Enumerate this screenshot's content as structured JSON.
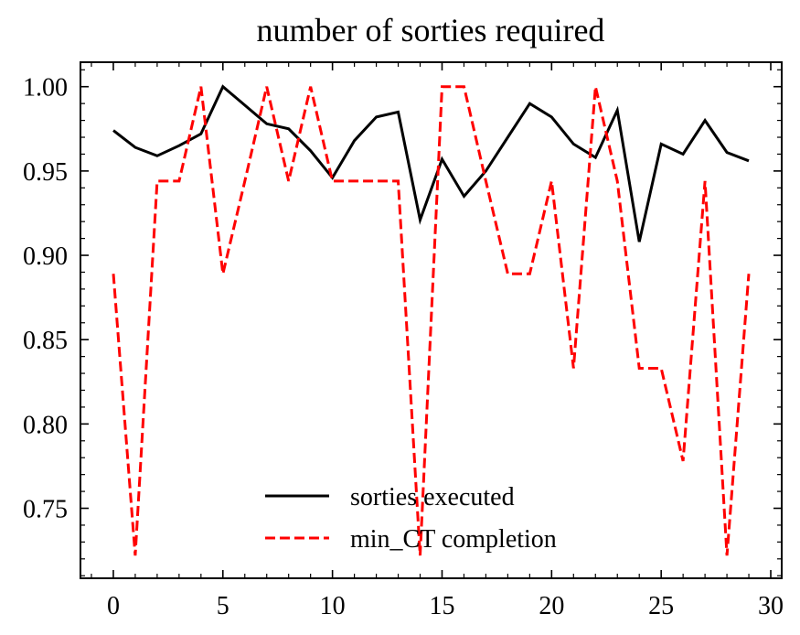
{
  "chart_data": {
    "type": "line",
    "title": "number of sorties required",
    "xlabel": "",
    "ylabel": "",
    "xlim": [
      -1.5,
      30.5
    ],
    "ylim": [
      0.7085,
      1.0145
    ],
    "xticks": [
      0,
      5,
      10,
      15,
      20,
      25,
      30
    ],
    "xtick_labels": [
      "0",
      "5",
      "10",
      "15",
      "20",
      "25",
      "30"
    ],
    "yticks": [
      0.75,
      0.8,
      0.85,
      0.9,
      0.95,
      1.0
    ],
    "ytick_labels": [
      "0.75",
      "0.80",
      "0.85",
      "0.90",
      "0.95",
      "1.00"
    ],
    "grid": false,
    "legend_position": "bottom-center",
    "x": [
      0,
      1,
      2,
      3,
      4,
      5,
      6,
      7,
      8,
      9,
      10,
      11,
      12,
      13,
      14,
      15,
      16,
      17,
      18,
      19,
      20,
      21,
      22,
      23,
      24,
      25,
      26,
      27,
      28,
      29
    ],
    "series": [
      {
        "name": "sorties executed",
        "color": "#000000",
        "dash": "solid",
        "values": [
          0.974,
          0.964,
          0.959,
          0.965,
          0.972,
          1.0,
          0.989,
          0.978,
          0.975,
          0.962,
          0.946,
          0.968,
          0.982,
          0.985,
          0.921,
          0.957,
          0.935,
          0.95,
          0.97,
          0.99,
          0.982,
          0.966,
          0.958,
          0.986,
          0.908,
          0.966,
          0.96,
          0.98,
          0.961,
          0.956
        ]
      },
      {
        "name": "min_CT completion",
        "color": "#ff0000",
        "dash": "dashed",
        "values": [
          0.889,
          0.722,
          0.944,
          0.944,
          1.0,
          0.889,
          0.944,
          1.0,
          0.944,
          1.0,
          0.944,
          0.944,
          0.944,
          0.944,
          0.722,
          1.0,
          1.0,
          0.944,
          0.889,
          0.889,
          0.944,
          0.833,
          1.0,
          0.944,
          0.833,
          0.833,
          0.778,
          0.944,
          0.722,
          0.889
        ]
      }
    ]
  }
}
